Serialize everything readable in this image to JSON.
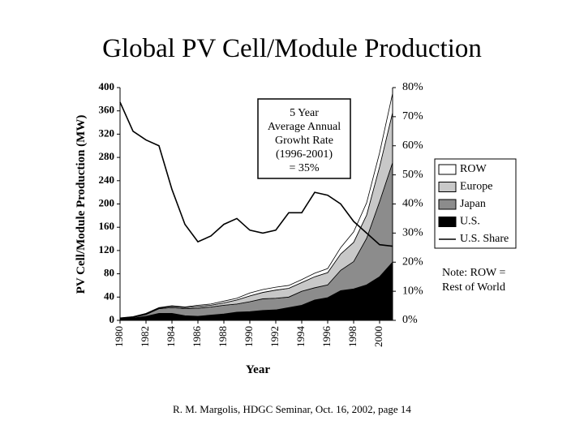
{
  "chart_data": {
    "type": "stacked-area",
    "title": "Global PV Cell/Module Production",
    "y_label": "PV Cell/Module Production (MW)",
    "x_label": "Year",
    "x": [
      1980,
      1981,
      1982,
      1983,
      1984,
      1985,
      1986,
      1987,
      1988,
      1989,
      1990,
      1991,
      1992,
      1993,
      1994,
      1995,
      1996,
      1997,
      1998,
      1999,
      2000,
      2001
    ],
    "xlim": [
      1980,
      2001
    ],
    "xticks": [
      1980,
      1982,
      1984,
      1986,
      1988,
      1990,
      1992,
      1994,
      1996,
      1998,
      2000
    ],
    "ylim": [
      0,
      400
    ],
    "yticks": [
      0,
      40,
      80,
      120,
      160,
      200,
      240,
      280,
      320,
      360,
      400
    ],
    "y2lim": [
      0,
      80
    ],
    "y2ticks": [
      {
        "value": 0,
        "label": "0%"
      },
      {
        "value": 10,
        "label": "10%"
      },
      {
        "value": 20,
        "label": "20%"
      },
      {
        "value": 30,
        "label": "30%"
      },
      {
        "value": 40,
        "label": "40%"
      },
      {
        "value": 50,
        "label": "50%"
      },
      {
        "value": 60,
        "label": "60%"
      },
      {
        "value": 70,
        "label": "70%"
      },
      {
        "value": 80,
        "label": "80%"
      }
    ],
    "series": [
      {
        "name": "U.S.",
        "color": "#000000",
        "values": [
          3,
          4,
          7,
          12,
          12,
          8,
          7,
          9,
          11,
          14,
          15,
          17,
          18,
          22,
          26,
          35,
          39,
          51,
          54,
          61,
          75,
          100
        ]
      },
      {
        "name": "Japan",
        "color": "#8c8c8c",
        "values": [
          0.5,
          1,
          3,
          8,
          10,
          12,
          14,
          14,
          15,
          14,
          17,
          20,
          20,
          18,
          24,
          21,
          22,
          35,
          47,
          80,
          129,
          171
        ]
      },
      {
        "name": "Europe",
        "color": "#c8c8c8",
        "values": [
          0.5,
          1,
          1,
          1,
          2,
          2,
          3,
          3,
          4,
          7,
          10,
          11,
          14,
          15,
          15,
          19,
          21,
          28,
          33,
          40,
          60,
          86
        ]
      },
      {
        "name": "ROW",
        "color": "#ffffff",
        "values": [
          0.3,
          0.5,
          1,
          1,
          1,
          1,
          2,
          2,
          3,
          3,
          5,
          5,
          5,
          5,
          5,
          6,
          7,
          11,
          18,
          21,
          24,
          33
        ]
      },
      {
        "name": "U.S. Share",
        "color": "#000000",
        "axis": "y2",
        "type": "line",
        "values": [
          75,
          65,
          62,
          60,
          45,
          33,
          27,
          29,
          33,
          35,
          31,
          30,
          31,
          37,
          37,
          44,
          43,
          40,
          34,
          30,
          26,
          25.5
        ]
      }
    ],
    "annotation": [
      "5 Year",
      "Average Annual",
      "Growht Rate",
      "(1996-2001)",
      "= 35%"
    ],
    "note": [
      "Note:  ROW =",
      "Rest of World"
    ],
    "footer": "R. M. Margolis, HDGC Seminar, Oct. 16, 2002, page 14"
  }
}
